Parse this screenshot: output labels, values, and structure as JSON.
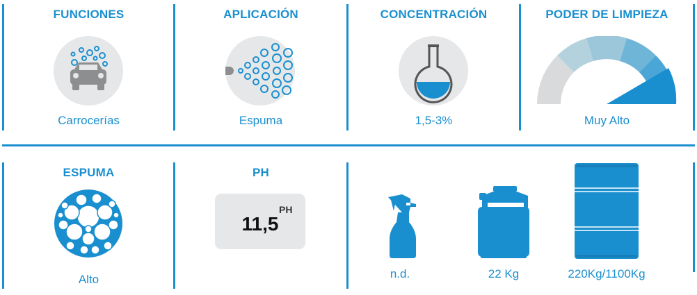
{
  "top_row": [
    {
      "title": "FUNCIONES",
      "value": "Carrocerías",
      "icon": "car-wash-icon"
    },
    {
      "title": "APLICACIÓN",
      "value": "Espuma",
      "icon": "foam-spray-icon"
    },
    {
      "title": "CONCENTRACIÓN",
      "value": "1,5-3%",
      "icon": "flask-icon"
    },
    {
      "title": "PODER DE LIMPIEZA",
      "value": "Muy Alto",
      "icon": "gauge-icon",
      "gauge_level": 0.9
    }
  ],
  "bottom_row": {
    "foam": {
      "title": "ESPUMA",
      "value": "Alto",
      "icon": "foam-bubbles-icon"
    },
    "ph": {
      "title": "PH",
      "value": "11,5",
      "unit": "PH"
    },
    "packaging": [
      {
        "label": "n.d.",
        "icon": "spray-bottle-icon"
      },
      {
        "label": "22 Kg",
        "icon": "jerrycan-icon"
      },
      {
        "label": "220Kg/1100Kg",
        "icon": "drum-icon"
      }
    ]
  },
  "colors": {
    "accent": "#1a8fcf",
    "icon_bg": "#e6e7e9",
    "gray": "#8d8e90"
  }
}
